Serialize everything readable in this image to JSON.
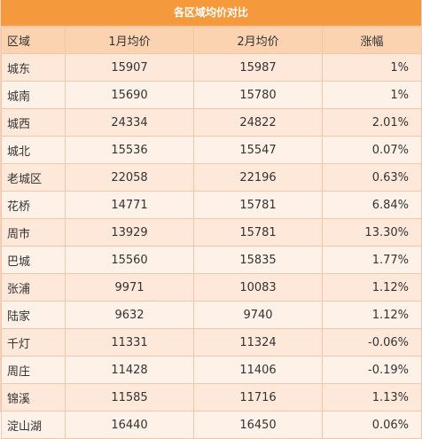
{
  "title": "各区域均价对比",
  "headers": {
    "area": "区域",
    "jan": "1月均价",
    "feb": "2月均价",
    "change": "涨幅"
  },
  "rows": [
    {
      "area": "城东",
      "jan": "15907",
      "feb": "15987",
      "change": "1%"
    },
    {
      "area": "城南",
      "jan": "15690",
      "feb": "15780",
      "change": "1%"
    },
    {
      "area": "城西",
      "jan": "24334",
      "feb": "24822",
      "change": "2.01%"
    },
    {
      "area": "城北",
      "jan": "15536",
      "feb": "15547",
      "change": "0.07%"
    },
    {
      "area": "老城区",
      "jan": "22058",
      "feb": "22196",
      "change": "0.63%"
    },
    {
      "area": "花桥",
      "jan": "14771",
      "feb": "15781",
      "change": "6.84%"
    },
    {
      "area": "周市",
      "jan": "13929",
      "feb": "15781",
      "change": "13.30%"
    },
    {
      "area": "巴城",
      "jan": "15560",
      "feb": "15835",
      "change": "1.77%"
    },
    {
      "area": "张浦",
      "jan": "9971",
      "feb": "10083",
      "change": "1.12%"
    },
    {
      "area": "陆家",
      "jan": "9632",
      "feb": "9740",
      "change": "1.12%"
    },
    {
      "area": "千灯",
      "jan": "11331",
      "feb": "11324",
      "change": "-0.06%"
    },
    {
      "area": "周庄",
      "jan": "11428",
      "feb": "11406",
      "change": "-0.19%"
    },
    {
      "area": "锦溪",
      "jan": "11585",
      "feb": "11716",
      "change": "1.13%"
    },
    {
      "area": "淀山湖",
      "jan": "16440",
      "feb": "16450",
      "change": "0.06%"
    }
  ],
  "colors": {
    "title_bg": "#f59a3c",
    "header_bg": "#fbd3b1",
    "row_odd_bg": "#fde8da",
    "row_even_bg": "#fdf1e8",
    "border": "#f2c7a9"
  }
}
